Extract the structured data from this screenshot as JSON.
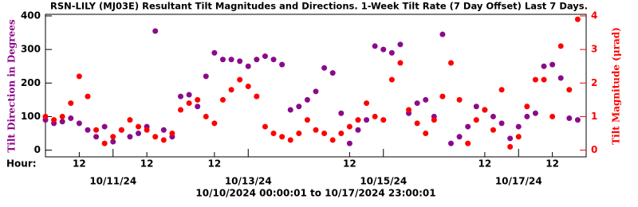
{
  "chart_data": {
    "type": "scatter",
    "title": "RSN-LILY (MJ03E) Resultant Tilt Magnitudes and Directions.  1-Week Tilt Rate (7 Day Offset) Last 7 Days.",
    "x_axis_label": "Hour:",
    "date_range": "10/10/2024 00:00:01 to 10/17/2024 23:00:01",
    "y_axis_label": "Tilt Direction in Degrees",
    "y2_axis_label": "Tilt Magnitude (μrad)",
    "xlim": [
      "10/10/24 00:00",
      "10/18/24 00:00"
    ],
    "hour_ticks": [
      {
        "value": "10/10/24 12:00",
        "label": "12"
      },
      {
        "value": "10/11/24 12:00",
        "label": "12"
      },
      {
        "value": "10/12/24 12:00",
        "label": "12"
      },
      {
        "value": "10/14/24 12:00",
        "label": "12"
      },
      {
        "value": "10/16/24 12:00",
        "label": "12"
      },
      {
        "value": "10/17/24 12:00",
        "label": "12"
      }
    ],
    "date_ticks": [
      {
        "value": "10/11/24 00:00",
        "label": "10/11/24"
      },
      {
        "value": "10/13/24 00:00",
        "label": "10/13/24"
      },
      {
        "value": "10/15/24 00:00",
        "label": "10/15/24"
      },
      {
        "value": "10/17/24 00:00",
        "label": "10/17/24"
      }
    ],
    "ylim": [
      -20,
      400
    ],
    "yticks": [
      0,
      100,
      200,
      300,
      400
    ],
    "y2lim": [
      -0.2,
      4
    ],
    "y2ticks": [
      0,
      1,
      2,
      3,
      4
    ],
    "x": [
      "10/10/24 00:00",
      "10/10/24 03:00",
      "10/10/24 06:00",
      "10/10/24 09:00",
      "10/10/24 12:00",
      "10/10/24 15:00",
      "10/10/24 18:00",
      "10/10/24 21:00",
      "10/11/24 00:00",
      "10/11/24 03:00",
      "10/11/24 06:00",
      "10/11/24 09:00",
      "10/11/24 12:00",
      "10/11/24 15:00",
      "10/11/24 18:00",
      "10/11/24 21:00",
      "10/12/24 00:00",
      "10/12/24 03:00",
      "10/12/24 06:00",
      "10/12/24 09:00",
      "10/12/24 12:00",
      "10/12/24 15:00",
      "10/12/24 18:00",
      "10/12/24 21:00",
      "10/13/24 00:00",
      "10/13/24 03:00",
      "10/13/24 06:00",
      "10/13/24 09:00",
      "10/13/24 12:00",
      "10/13/24 15:00",
      "10/13/24 18:00",
      "10/13/24 21:00",
      "10/14/24 00:00",
      "10/14/24 03:00",
      "10/14/24 06:00",
      "10/14/24 09:00",
      "10/14/24 12:00",
      "10/14/24 15:00",
      "10/14/24 18:00",
      "10/14/24 21:00",
      "10/15/24 00:00",
      "10/15/24 03:00",
      "10/15/24 06:00",
      "10/15/24 09:00",
      "10/15/24 12:00",
      "10/15/24 15:00",
      "10/15/24 18:00",
      "10/15/24 21:00",
      "10/16/24 00:00",
      "10/16/24 03:00",
      "10/16/24 06:00",
      "10/16/24 09:00",
      "10/16/24 12:00",
      "10/16/24 15:00",
      "10/16/24 18:00",
      "10/16/24 21:00",
      "10/17/24 00:00",
      "10/17/24 03:00",
      "10/17/24 06:00",
      "10/17/24 09:00",
      "10/17/24 12:00",
      "10/17/24 15:00",
      "10/17/24 18:00",
      "10/17/24 21:00"
    ],
    "series": [
      {
        "name": "Tilt Direction",
        "color": "#8b0a8b",
        "axis": "y",
        "values": [
          90,
          80,
          85,
          95,
          80,
          60,
          40,
          70,
          25,
          60,
          40,
          50,
          70,
          355,
          60,
          40,
          160,
          165,
          130,
          220,
          290,
          270,
          270,
          265,
          250,
          270,
          280,
          270,
          255,
          120,
          130,
          150,
          175,
          245,
          230,
          110,
          20,
          60,
          90,
          310,
          300,
          290,
          315,
          110,
          140,
          150,
          100,
          345,
          20,
          40,
          70,
          130,
          120,
          100,
          80,
          35,
          70,
          100,
          110,
          250,
          255,
          215,
          95,
          90
        ]
      },
      {
        "name": "Tilt Magnitude",
        "color": "#ff0000",
        "axis": "y2",
        "values": [
          1.0,
          0.9,
          1.0,
          1.4,
          2.2,
          1.6,
          0.6,
          0.2,
          0.4,
          0.6,
          0.9,
          0.7,
          0.6,
          0.4,
          0.3,
          0.5,
          1.2,
          1.4,
          1.5,
          1.0,
          0.8,
          1.5,
          1.8,
          2.1,
          1.9,
          1.6,
          0.7,
          0.5,
          0.4,
          0.3,
          0.5,
          0.9,
          0.6,
          0.5,
          0.3,
          0.5,
          0.7,
          0.9,
          1.4,
          1.0,
          0.9,
          2.1,
          2.6,
          1.2,
          0.8,
          0.5,
          0.9,
          1.6,
          2.6,
          1.5,
          0.2,
          0.9,
          1.2,
          0.6,
          1.8,
          0.1,
          0.4,
          1.3,
          2.1,
          2.1,
          1.0,
          3.1,
          1.8,
          3.9
        ]
      }
    ]
  }
}
